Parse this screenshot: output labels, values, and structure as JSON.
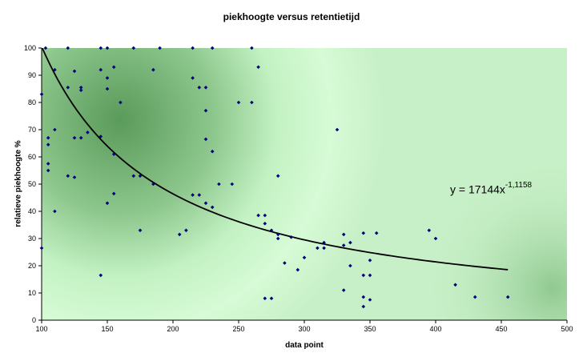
{
  "chart_data": {
    "type": "scatter",
    "title": "piekhoogte versus retentietijd",
    "xlabel": "data point",
    "ylabel": "relatieve piekhoogte %",
    "xlim": [
      100,
      500
    ],
    "ylim": [
      0,
      100
    ],
    "xticks": [
      "100",
      "150",
      "200",
      "250",
      "300",
      "350",
      "400",
      "450",
      "500"
    ],
    "yticks": [
      "0",
      "10",
      "20",
      "30",
      "40",
      "50",
      "60",
      "70",
      "80",
      "90",
      "100"
    ],
    "grid": false,
    "legend": "none",
    "point_color": "#000080",
    "trendline": {
      "type": "power",
      "coefficient": 17144,
      "exponent": -1.1158,
      "x_range": [
        100,
        455
      ],
      "equation_prefix": "y = 17144x",
      "equation_exponent": "-1,1158"
    },
    "points": [
      [
        100,
        83
      ],
      [
        100,
        26.5
      ],
      [
        103,
        100
      ],
      [
        105,
        67
      ],
      [
        105,
        64.5
      ],
      [
        105,
        57.5
      ],
      [
        105,
        55
      ],
      [
        110,
        92
      ],
      [
        110,
        70
      ],
      [
        110,
        40
      ],
      [
        120,
        100
      ],
      [
        120,
        85.5
      ],
      [
        120,
        53
      ],
      [
        125,
        91.5
      ],
      [
        125,
        67
      ],
      [
        125,
        52.5
      ],
      [
        130,
        85.5
      ],
      [
        130,
        84.5
      ],
      [
        130,
        67
      ],
      [
        135,
        69
      ],
      [
        145,
        100
      ],
      [
        145,
        92
      ],
      [
        145,
        67.5
      ],
      [
        145,
        16.5
      ],
      [
        150,
        100
      ],
      [
        150,
        89
      ],
      [
        150,
        85
      ],
      [
        150,
        43
      ],
      [
        155,
        93
      ],
      [
        155,
        61
      ],
      [
        155,
        46.5
      ],
      [
        160,
        80
      ],
      [
        170,
        100
      ],
      [
        170,
        53
      ],
      [
        175,
        53
      ],
      [
        175,
        33
      ],
      [
        185,
        92
      ],
      [
        185,
        50
      ],
      [
        190,
        100
      ],
      [
        205,
        31.5
      ],
      [
        210,
        33
      ],
      [
        215,
        100
      ],
      [
        215,
        89
      ],
      [
        215,
        46
      ],
      [
        220,
        85.5
      ],
      [
        220,
        46
      ],
      [
        225,
        85.5
      ],
      [
        225,
        77
      ],
      [
        225,
        66.5
      ],
      [
        225,
        43
      ],
      [
        230,
        100
      ],
      [
        230,
        62
      ],
      [
        230,
        41.5
      ],
      [
        235,
        50
      ],
      [
        245,
        50
      ],
      [
        250,
        80
      ],
      [
        260,
        100
      ],
      [
        260,
        80
      ],
      [
        265,
        93
      ],
      [
        265,
        38.5
      ],
      [
        270,
        38.5
      ],
      [
        270,
        35.5
      ],
      [
        270,
        8
      ],
      [
        275,
        33
      ],
      [
        275,
        8
      ],
      [
        280,
        53
      ],
      [
        280,
        31.5
      ],
      [
        280,
        30
      ],
      [
        285,
        21
      ],
      [
        290,
        30.5
      ],
      [
        295,
        18.5
      ],
      [
        300,
        23
      ],
      [
        310,
        26.5
      ],
      [
        315,
        28.5
      ],
      [
        315,
        26.5
      ],
      [
        325,
        70
      ],
      [
        330,
        31.5
      ],
      [
        330,
        27.5
      ],
      [
        330,
        11
      ],
      [
        335,
        28.5
      ],
      [
        335,
        20
      ],
      [
        345,
        32
      ],
      [
        345,
        16.5
      ],
      [
        345,
        8.5
      ],
      [
        345,
        5
      ],
      [
        350,
        22
      ],
      [
        350,
        16.5
      ],
      [
        350,
        7.5
      ],
      [
        355,
        32
      ],
      [
        395,
        33
      ],
      [
        400,
        30
      ],
      [
        415,
        13
      ],
      [
        430,
        8.5
      ],
      [
        455,
        8.5
      ]
    ]
  }
}
